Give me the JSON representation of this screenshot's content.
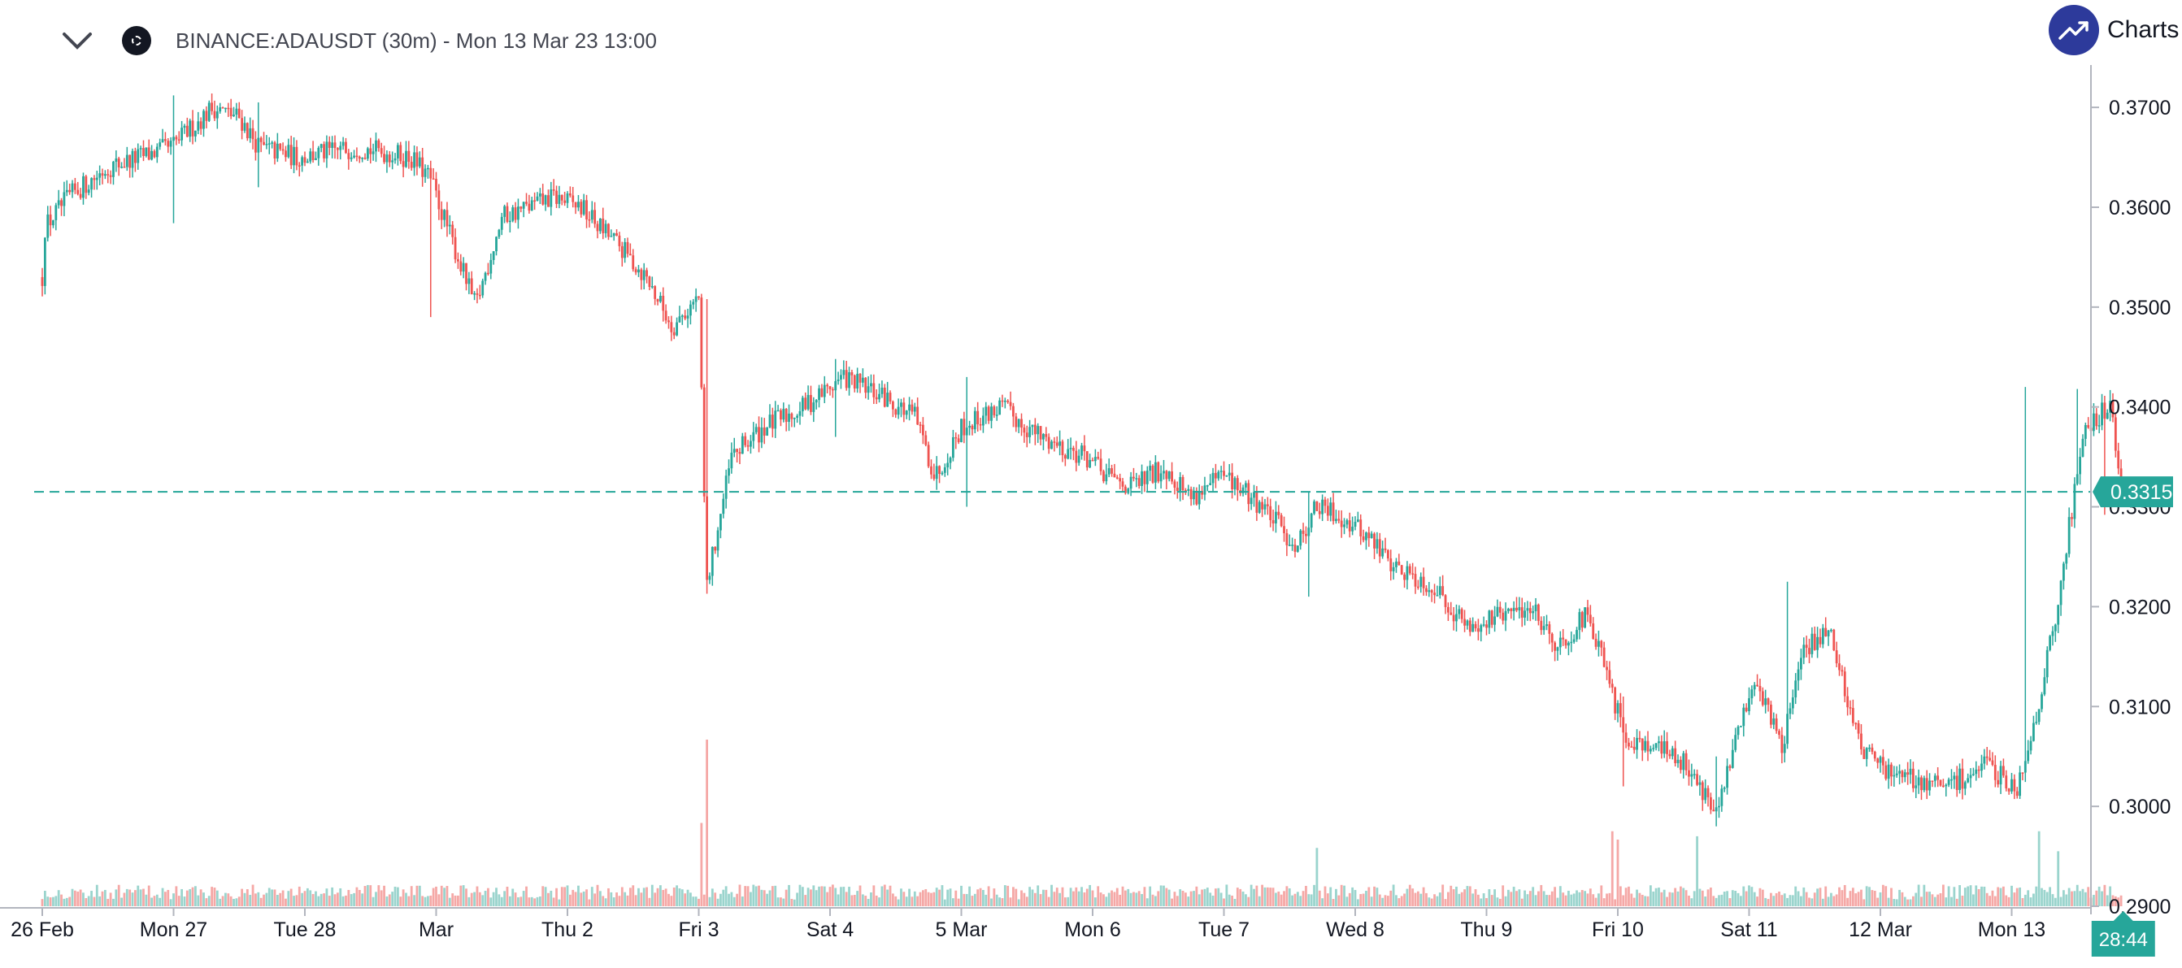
{
  "header": {
    "symbol_title": "BINANCE:ADAUSDT (30m) - Mon 13 Mar 23 13:00",
    "brand_label": "Charts powered by TradingView"
  },
  "colors": {
    "up": "#26a69a",
    "down": "#ef5350",
    "up_volume": "#9ad4cd",
    "down_volume": "#f5a8a6",
    "price_line": "#26a69a",
    "axis_line": "#b2b5be",
    "text": "#131722",
    "brand": "#2d3a9b"
  },
  "icons": {
    "collapse": "chevron-down-icon",
    "symbol": "cardano-coin-icon",
    "brand": "trend-up-icon"
  },
  "chart_data": {
    "type": "candlestick",
    "symbol": "BINANCE:ADAUSDT",
    "interval": "30m",
    "x_tick_labels": [
      "26 Feb",
      "Mon 27",
      "Tue 28",
      "Mar",
      "Thu 2",
      "Fri 3",
      "Sat 4",
      "5 Mar",
      "Mon 6",
      "Tue 7",
      "Wed 8",
      "Thu 9",
      "Fri 10",
      "Sat 11",
      "12 Mar",
      "Mon 13"
    ],
    "y_tick_labels": [
      "0.3700",
      "0.3600",
      "0.3500",
      "0.3400",
      "0.3300",
      "0.3200",
      "0.3100",
      "0.3000",
      "0.2900"
    ],
    "y_ticks": [
      0.37,
      0.36,
      0.35,
      0.34,
      0.33,
      0.32,
      0.31,
      0.3,
      0.29
    ],
    "ylim": [
      0.29,
      0.3718
    ],
    "last_price": 0.3315,
    "last_price_label": "0.3315",
    "countdown_label": "28:44",
    "price_line_style": "dashed",
    "grid": false,
    "volume_overlay": true,
    "price_path_days": [
      0,
      0.02,
      0.2,
      0.5,
      0.98,
      1.3,
      1.5,
      1.65,
      1.95,
      2.4,
      2.8,
      2.95,
      3.3,
      3.5,
      3.9,
      4.1,
      4.4,
      4.6,
      4.8,
      5.0,
      5.06,
      5.25,
      5.5,
      5.8,
      6.1,
      6.4,
      6.65,
      6.8,
      7.0,
      7.3,
      7.6,
      7.95,
      8.1,
      8.3,
      8.55,
      8.75,
      9.0,
      9.3,
      9.55,
      9.7,
      9.9,
      10.1,
      10.3,
      10.6,
      10.85,
      11.1,
      11.35,
      11.55,
      11.75,
      11.85,
      12.05,
      12.3,
      12.55,
      12.75,
      12.95,
      13.05,
      13.25,
      13.4,
      13.6,
      13.85,
      14.1,
      14.5,
      14.8,
      15.05,
      15.2,
      15.35,
      15.55,
      15.75,
      15.85
    ],
    "price_path_close": [
      0.353,
      0.358,
      0.361,
      0.364,
      0.366,
      0.37,
      0.369,
      0.366,
      0.365,
      0.366,
      0.365,
      0.363,
      0.35,
      0.359,
      0.361,
      0.36,
      0.356,
      0.353,
      0.348,
      0.351,
      0.322,
      0.335,
      0.338,
      0.34,
      0.343,
      0.341,
      0.339,
      0.333,
      0.338,
      0.34,
      0.337,
      0.335,
      0.333,
      0.332,
      0.334,
      0.331,
      0.333,
      0.33,
      0.326,
      0.33,
      0.329,
      0.327,
      0.324,
      0.322,
      0.318,
      0.319,
      0.32,
      0.316,
      0.319,
      0.316,
      0.307,
      0.306,
      0.304,
      0.299,
      0.309,
      0.313,
      0.306,
      0.315,
      0.318,
      0.306,
      0.303,
      0.302,
      0.304,
      0.302,
      0.31,
      0.32,
      0.338,
      0.34,
      0.331
    ],
    "candle_spikes": [
      {
        "day": 1.0,
        "high": 0.3712,
        "low": 0.3584
      },
      {
        "day": 1.65,
        "high": 0.3705,
        "low": 0.362
      },
      {
        "day": 2.95,
        "high": 0.362,
        "low": 0.349
      },
      {
        "day": 5.06,
        "high": 0.3508,
        "low": 0.3213
      },
      {
        "day": 6.05,
        "high": 0.3448,
        "low": 0.337
      },
      {
        "day": 7.05,
        "high": 0.343,
        "low": 0.33
      },
      {
        "day": 9.65,
        "high": 0.3315,
        "low": 0.321
      },
      {
        "day": 12.05,
        "high": 0.311,
        "low": 0.302
      },
      {
        "day": 12.75,
        "high": 0.305,
        "low": 0.298
      },
      {
        "day": 13.3,
        "high": 0.3225,
        "low": 0.31
      },
      {
        "day": 15.1,
        "high": 0.342,
        "low": 0.336
      },
      {
        "day": 15.5,
        "high": 0.3418,
        "low": 0.336
      },
      {
        "day": 15.7,
        "high": 0.332,
        "low": 0.3292
      }
    ],
    "volume_spikes": [
      {
        "day": 5.06,
        "rel": 1.0,
        "dir": "down"
      },
      {
        "day": 5.02,
        "rel": 0.5,
        "dir": "down"
      },
      {
        "day": 9.7,
        "rel": 0.35,
        "dir": "up"
      },
      {
        "day": 11.95,
        "rel": 0.45,
        "dir": "down"
      },
      {
        "day": 12.0,
        "rel": 0.4,
        "dir": "down"
      },
      {
        "day": 12.6,
        "rel": 0.42,
        "dir": "up"
      },
      {
        "day": 15.2,
        "rel": 0.45,
        "dir": "up"
      },
      {
        "day": 15.35,
        "rel": 0.33,
        "dir": "up"
      }
    ]
  }
}
